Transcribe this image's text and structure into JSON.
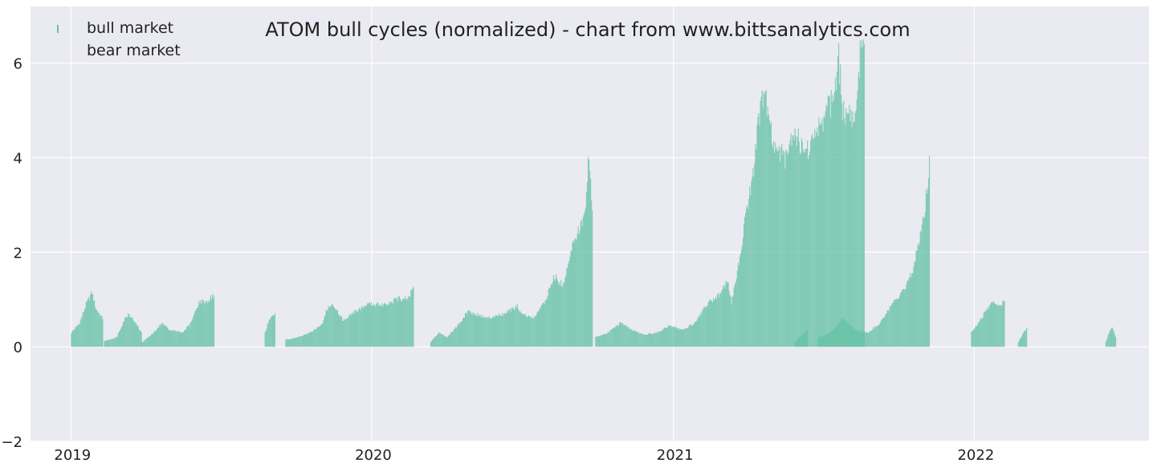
{
  "chart_data": {
    "type": "bar",
    "title": "ATOM bull cycles (normalized)  - chart from www.bittsanalytics.com",
    "xlabel": "",
    "ylabel": "",
    "xlim": [
      "2018-11-13",
      "2022-08-01"
    ],
    "ylim": [
      -2,
      7.2
    ],
    "grid": true,
    "legend_position": "top-left",
    "x_ticks": [
      {
        "date": "2019-01-01",
        "label": "2019"
      },
      {
        "date": "2020-01-01",
        "label": "2020"
      },
      {
        "date": "2021-01-01",
        "label": "2021"
      },
      {
        "date": "2022-01-01",
        "label": "2022"
      }
    ],
    "y_ticks": [
      {
        "value": -2,
        "label": "−2"
      },
      {
        "value": 0,
        "label": "0"
      },
      {
        "value": 2,
        "label": "2"
      },
      {
        "value": 4,
        "label": "4"
      },
      {
        "value": 6,
        "label": "6"
      }
    ],
    "colors": {
      "bull": "#66c2a5",
      "bear": "#fc8d62",
      "plot_background": "#eaeaf2",
      "grid": "#ffffff"
    },
    "series": [
      {
        "name": "bull market",
        "segments": [
          {
            "start": "2019-01-01",
            "points": [
              [
                0,
                0.3
              ],
              [
                10,
                0.5
              ],
              [
                18,
                0.9
              ],
              [
                25,
                1.15
              ],
              [
                30,
                0.8
              ],
              [
                38,
                0.6
              ]
            ]
          },
          {
            "start": "2019-02-10",
            "points": [
              [
                0,
                0.12
              ],
              [
                15,
                0.2
              ],
              [
                25,
                0.6
              ],
              [
                30,
                0.7
              ],
              [
                38,
                0.5
              ],
              [
                45,
                0.3
              ]
            ]
          },
          {
            "start": "2019-03-27",
            "points": [
              [
                0,
                0.08
              ],
              [
                15,
                0.3
              ],
              [
                25,
                0.5
              ],
              [
                35,
                0.35
              ],
              [
                50,
                0.3
              ],
              [
                60,
                0.5
              ],
              [
                70,
                0.95
              ],
              [
                80,
                0.95
              ],
              [
                88,
                1.1
              ]
            ]
          },
          {
            "start": "2019-08-24",
            "points": [
              [
                0,
                0.3
              ],
              [
                6,
                0.6
              ],
              [
                12,
                0.7
              ]
            ]
          },
          {
            "start": "2019-09-18",
            "points": [
              [
                0,
                0.15
              ],
              [
                15,
                0.2
              ],
              [
                30,
                0.3
              ],
              [
                45,
                0.5
              ],
              [
                50,
                0.8
              ],
              [
                58,
                0.9
              ],
              [
                70,
                0.55
              ],
              [
                80,
                0.7
              ],
              [
                100,
                0.9
              ],
              [
                120,
                0.9
              ],
              [
                135,
                1.0
              ],
              [
                150,
                1.05
              ],
              [
                155,
                1.3
              ]
            ]
          },
          {
            "start": "2020-03-12",
            "points": [
              [
                0,
                0.1
              ],
              [
                10,
                0.3
              ],
              [
                20,
                0.2
              ],
              [
                35,
                0.5
              ],
              [
                45,
                0.75
              ],
              [
                70,
                0.6
              ],
              [
                90,
                0.7
              ],
              [
                105,
                0.85
              ],
              [
                110,
                0.7
              ],
              [
                125,
                0.6
              ],
              [
                140,
                1.0
              ],
              [
                150,
                1.5
              ],
              [
                160,
                1.3
              ],
              [
                170,
                2.0
              ],
              [
                180,
                2.5
              ],
              [
                188,
                2.8
              ],
              [
                192,
                4.2
              ],
              [
                196,
                2.9
              ]
            ]
          },
          {
            "start": "2020-09-28",
            "points": [
              [
                0,
                0.2
              ],
              [
                15,
                0.3
              ],
              [
                30,
                0.5
              ],
              [
                45,
                0.35
              ],
              [
                60,
                0.25
              ],
              [
                75,
                0.3
              ],
              [
                90,
                0.45
              ],
              [
                105,
                0.35
              ],
              [
                120,
                0.5
              ],
              [
                135,
                0.9
              ],
              [
                150,
                1.1
              ],
              [
                160,
                1.4
              ],
              [
                165,
                0.9
              ],
              [
                175,
                1.9
              ],
              [
                182,
                2.8
              ],
              [
                190,
                3.5
              ],
              [
                198,
                4.8
              ],
              [
                205,
                5.4
              ],
              [
                215,
                4.3
              ],
              [
                230,
                4.0
              ],
              [
                240,
                4.6
              ],
              [
                255,
                4.1
              ],
              [
                270,
                4.6
              ],
              [
                280,
                5.0
              ],
              [
                290,
                5.3
              ],
              [
                295,
                6.1
              ],
              [
                300,
                5.0
              ],
              [
                315,
                4.8
              ],
              [
                322,
                6.5
              ],
              [
                326,
                6.1
              ]
            ]
          },
          {
            "start": "2021-05-28",
            "points": [
              [
                0,
                0.1
              ],
              [
                8,
                0.25
              ],
              [
                15,
                0.35
              ]
            ]
          },
          {
            "start": "2021-06-25",
            "points": [
              [
                0,
                0.2
              ],
              [
                15,
                0.3
              ],
              [
                30,
                0.6
              ],
              [
                45,
                0.35
              ],
              [
                60,
                0.3
              ],
              [
                75,
                0.5
              ],
              [
                90,
                0.9
              ],
              [
                105,
                1.2
              ],
              [
                115,
                1.6
              ],
              [
                125,
                2.5
              ],
              [
                130,
                3.0
              ],
              [
                135,
                3.9
              ]
            ]
          },
          {
            "start": "2021-12-28",
            "points": [
              [
                0,
                0.3
              ],
              [
                12,
                0.6
              ],
              [
                25,
                0.95
              ],
              [
                35,
                0.85
              ],
              [
                40,
                1.0
              ]
            ]
          },
          {
            "start": "2022-02-23",
            "points": [
              [
                0,
                0.1
              ],
              [
                6,
                0.3
              ],
              [
                10,
                0.4
              ]
            ]
          },
          {
            "start": "2022-06-09",
            "points": [
              [
                0,
                0.1
              ],
              [
                5,
                0.35
              ],
              [
                8,
                0.4
              ],
              [
                12,
                0.2
              ]
            ]
          }
        ]
      },
      {
        "name": "bear market",
        "segments": []
      }
    ]
  }
}
